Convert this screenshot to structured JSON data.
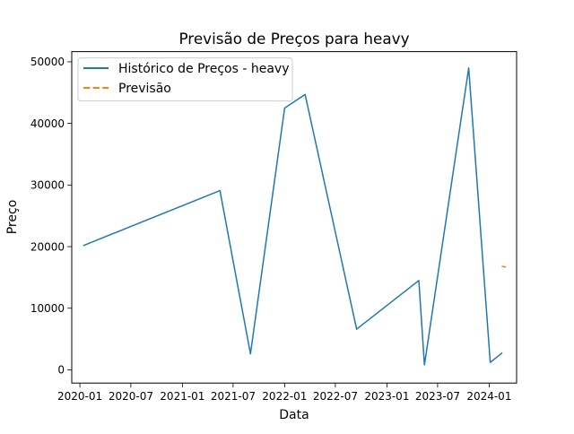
{
  "chart_data": {
    "type": "line",
    "title": "Previsão de Preços para heavy",
    "xlabel": "Data",
    "ylabel": "Preço",
    "x_ticks": [
      "2020-01",
      "2020-07",
      "2021-01",
      "2021-07",
      "2022-01",
      "2022-07",
      "2023-01",
      "2023-07",
      "2024-01"
    ],
    "y_ticks": [
      0,
      10000,
      20000,
      30000,
      40000,
      50000
    ],
    "y_tick_labels": [
      "0",
      "10000",
      "20000",
      "30000",
      "40000",
      "50000"
    ],
    "xlim": [
      "2019-12-03",
      "2024-04-08"
    ],
    "ylim": [
      -2150,
      51650
    ],
    "grid": false,
    "legend_position": "upper-left",
    "series": [
      {
        "name": "Histórico de Preços - heavy",
        "style": "solid",
        "color": "#1f77b4",
        "points": [
          {
            "x": "2020-01-15",
            "y": 20200
          },
          {
            "x": "2021-05-15",
            "y": 29100
          },
          {
            "x": "2021-09-01",
            "y": 2600
          },
          {
            "x": "2022-01-01",
            "y": 42500
          },
          {
            "x": "2022-03-15",
            "y": 44700
          },
          {
            "x": "2022-09-15",
            "y": 6600
          },
          {
            "x": "2023-04-25",
            "y": 14500
          },
          {
            "x": "2023-05-15",
            "y": 800
          },
          {
            "x": "2023-10-20",
            "y": 49000
          },
          {
            "x": "2024-01-05",
            "y": 1200
          },
          {
            "x": "2024-02-15",
            "y": 2700
          }
        ]
      },
      {
        "name": "Previsão",
        "style": "dashed",
        "color": "#ff7f0e",
        "points": [
          {
            "x": "2024-02-15",
            "y": 16800
          },
          {
            "x": "2024-03-01",
            "y": 16700
          }
        ]
      }
    ]
  }
}
